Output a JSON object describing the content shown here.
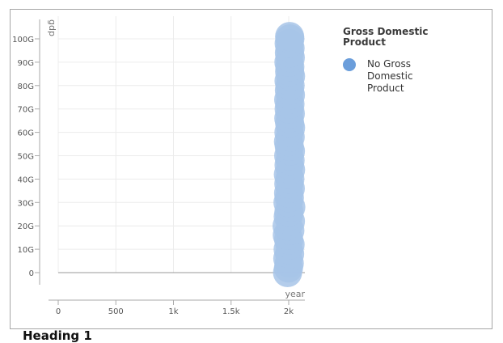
{
  "chart_data": {
    "type": "scatter",
    "title": "",
    "xlabel": "year",
    "ylabel": "gdp",
    "xlim": [
      0,
      2140
    ],
    "ylim": [
      0,
      103000000000
    ],
    "x_ticks": [
      {
        "value": 0,
        "label": "0"
      },
      {
        "value": 500,
        "label": "500"
      },
      {
        "value": 1000,
        "label": "1k"
      },
      {
        "value": 1500,
        "label": "1.5k"
      },
      {
        "value": 2000,
        "label": "2k"
      }
    ],
    "y_ticks": [
      {
        "value": 0,
        "label": "0"
      },
      {
        "value": 10000000000,
        "label": "10G"
      },
      {
        "value": 20000000000,
        "label": "20G"
      },
      {
        "value": 30000000000,
        "label": "30G"
      },
      {
        "value": 40000000000,
        "label": "40G"
      },
      {
        "value": 50000000000,
        "label": "50G"
      },
      {
        "value": 60000000000,
        "label": "60G"
      },
      {
        "value": 70000000000,
        "label": "70G"
      },
      {
        "value": 80000000000,
        "label": "80G"
      },
      {
        "value": 90000000000,
        "label": "90G"
      },
      {
        "value": 100000000000,
        "label": "100G"
      }
    ],
    "grid": true,
    "legend_position": "right",
    "legend_title": "Gross Domestic Product",
    "series": [
      {
        "name": "No Gross Domestic Product",
        "color": "#a7c4e8",
        "swatch_color": "#6b9edb",
        "points": [
          [
            1990,
            0
          ],
          [
            1998,
            2000000000
          ],
          [
            2005,
            4000000000
          ],
          [
            1992,
            6000000000
          ],
          [
            2008,
            8000000000
          ],
          [
            1995,
            10000000000
          ],
          [
            2012,
            12000000000
          ],
          [
            2000,
            14000000000
          ],
          [
            1988,
            16000000000
          ],
          [
            2010,
            18000000000
          ],
          [
            1986,
            20000000000
          ],
          [
            2015,
            22000000000
          ],
          [
            1996,
            24000000000
          ],
          [
            2002,
            26000000000
          ],
          [
            2018,
            28000000000
          ],
          [
            1994,
            30000000000
          ],
          [
            2006,
            32000000000
          ],
          [
            1999,
            34000000000
          ],
          [
            2014,
            36000000000
          ],
          [
            2001,
            38000000000
          ],
          [
            2010,
            40000000000
          ],
          [
            1997,
            42000000000
          ],
          [
            2016,
            44000000000
          ],
          [
            2003,
            46000000000
          ],
          [
            2012,
            48000000000
          ],
          [
            2000,
            50000000000
          ],
          [
            2015,
            52000000000
          ],
          [
            2005,
            54000000000
          ],
          [
            1998,
            56000000000
          ],
          [
            2013,
            58000000000
          ],
          [
            2002,
            60000000000
          ],
          [
            2016,
            62000000000
          ],
          [
            2008,
            64000000000
          ],
          [
            2001,
            66000000000
          ],
          [
            2014,
            68000000000
          ],
          [
            2004,
            70000000000
          ],
          [
            2011,
            72000000000
          ],
          [
            2000,
            74000000000
          ],
          [
            2015,
            76000000000
          ],
          [
            2006,
            78000000000
          ],
          [
            2012,
            80000000000
          ],
          [
            2003,
            82000000000
          ],
          [
            2016,
            84000000000
          ],
          [
            2008,
            86000000000
          ],
          [
            2010,
            88000000000
          ],
          [
            2002,
            90000000000
          ],
          [
            2014,
            92000000000
          ],
          [
            2006,
            94000000000
          ],
          [
            2012,
            96000000000
          ],
          [
            2004,
            98000000000
          ],
          [
            2010,
            100000000000
          ],
          [
            2008,
            101000000000
          ]
        ]
      }
    ]
  },
  "footer": {
    "heading": "Heading 1"
  }
}
